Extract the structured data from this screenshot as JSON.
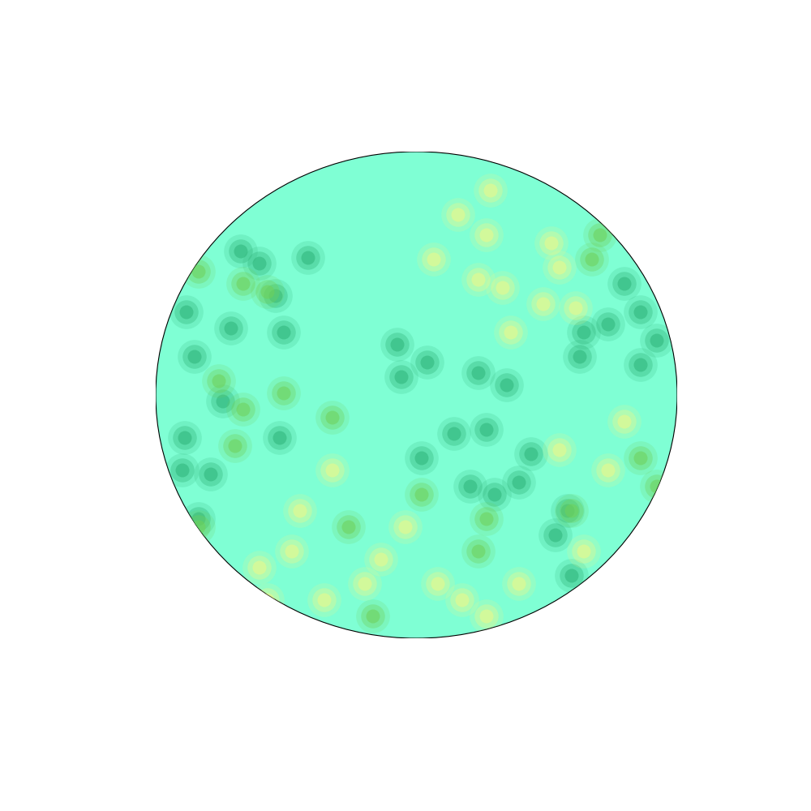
{
  "chart_data": {
    "type": "scatter",
    "tick_labels": false,
    "xlim": [
      192,
      835
    ],
    "ylim": [
      787,
      187
    ],
    "color": "#7fffd4",
    "series": [
      {
        "color": "#2fb57a",
        "x": [
          297,
          320,
          380,
          340,
          285,
          350,
          240,
          230,
          275,
          345,
          228,
          225,
          260,
          245,
          490,
          495,
          527,
          590,
          625,
          560,
          600,
          520,
          580,
          610,
          655,
          640,
          700,
          685,
          715,
          770,
          790,
          750,
          790,
          810,
          720,
          705
        ],
        "y": [
          310,
          325,
          318,
          365,
          405,
          410,
          440,
          385,
          495,
          540,
          540,
          580,
          585,
          640,
          425,
          465,
          447,
          460,
          475,
          535,
          530,
          565,
          600,
          610,
          560,
          595,
          630,
          660,
          440,
          350,
          385,
          400,
          450,
          420,
          410,
          710
        ]
      },
      {
        "color": "#6fd15a",
        "x": [
          245,
          300,
          330,
          270,
          300,
          290,
          350,
          410,
          430,
          600,
          590,
          705,
          790,
          810,
          460,
          740,
          730,
          520,
          245
        ],
        "y": [
          335,
          350,
          360,
          470,
          505,
          550,
          485,
          515,
          650,
          640,
          680,
          630,
          565,
          600,
          760,
          290,
          320,
          610,
          650
        ]
      },
      {
        "color": "#eef88a",
        "x": [
          565,
          600,
          605,
          590,
          620,
          680,
          690,
          670,
          710,
          770,
          750,
          690,
          370,
          360,
          320,
          470,
          500,
          450,
          540,
          570,
          640,
          720,
          400,
          330,
          600,
          535,
          630,
          410
        ],
        "y": [
          265,
          290,
          235,
          345,
          355,
          300,
          330,
          375,
          380,
          520,
          580,
          555,
          630,
          680,
          700,
          690,
          650,
          720,
          720,
          740,
          720,
          680,
          740,
          740,
          760,
          320,
          410,
          580
        ]
      }
    ]
  }
}
